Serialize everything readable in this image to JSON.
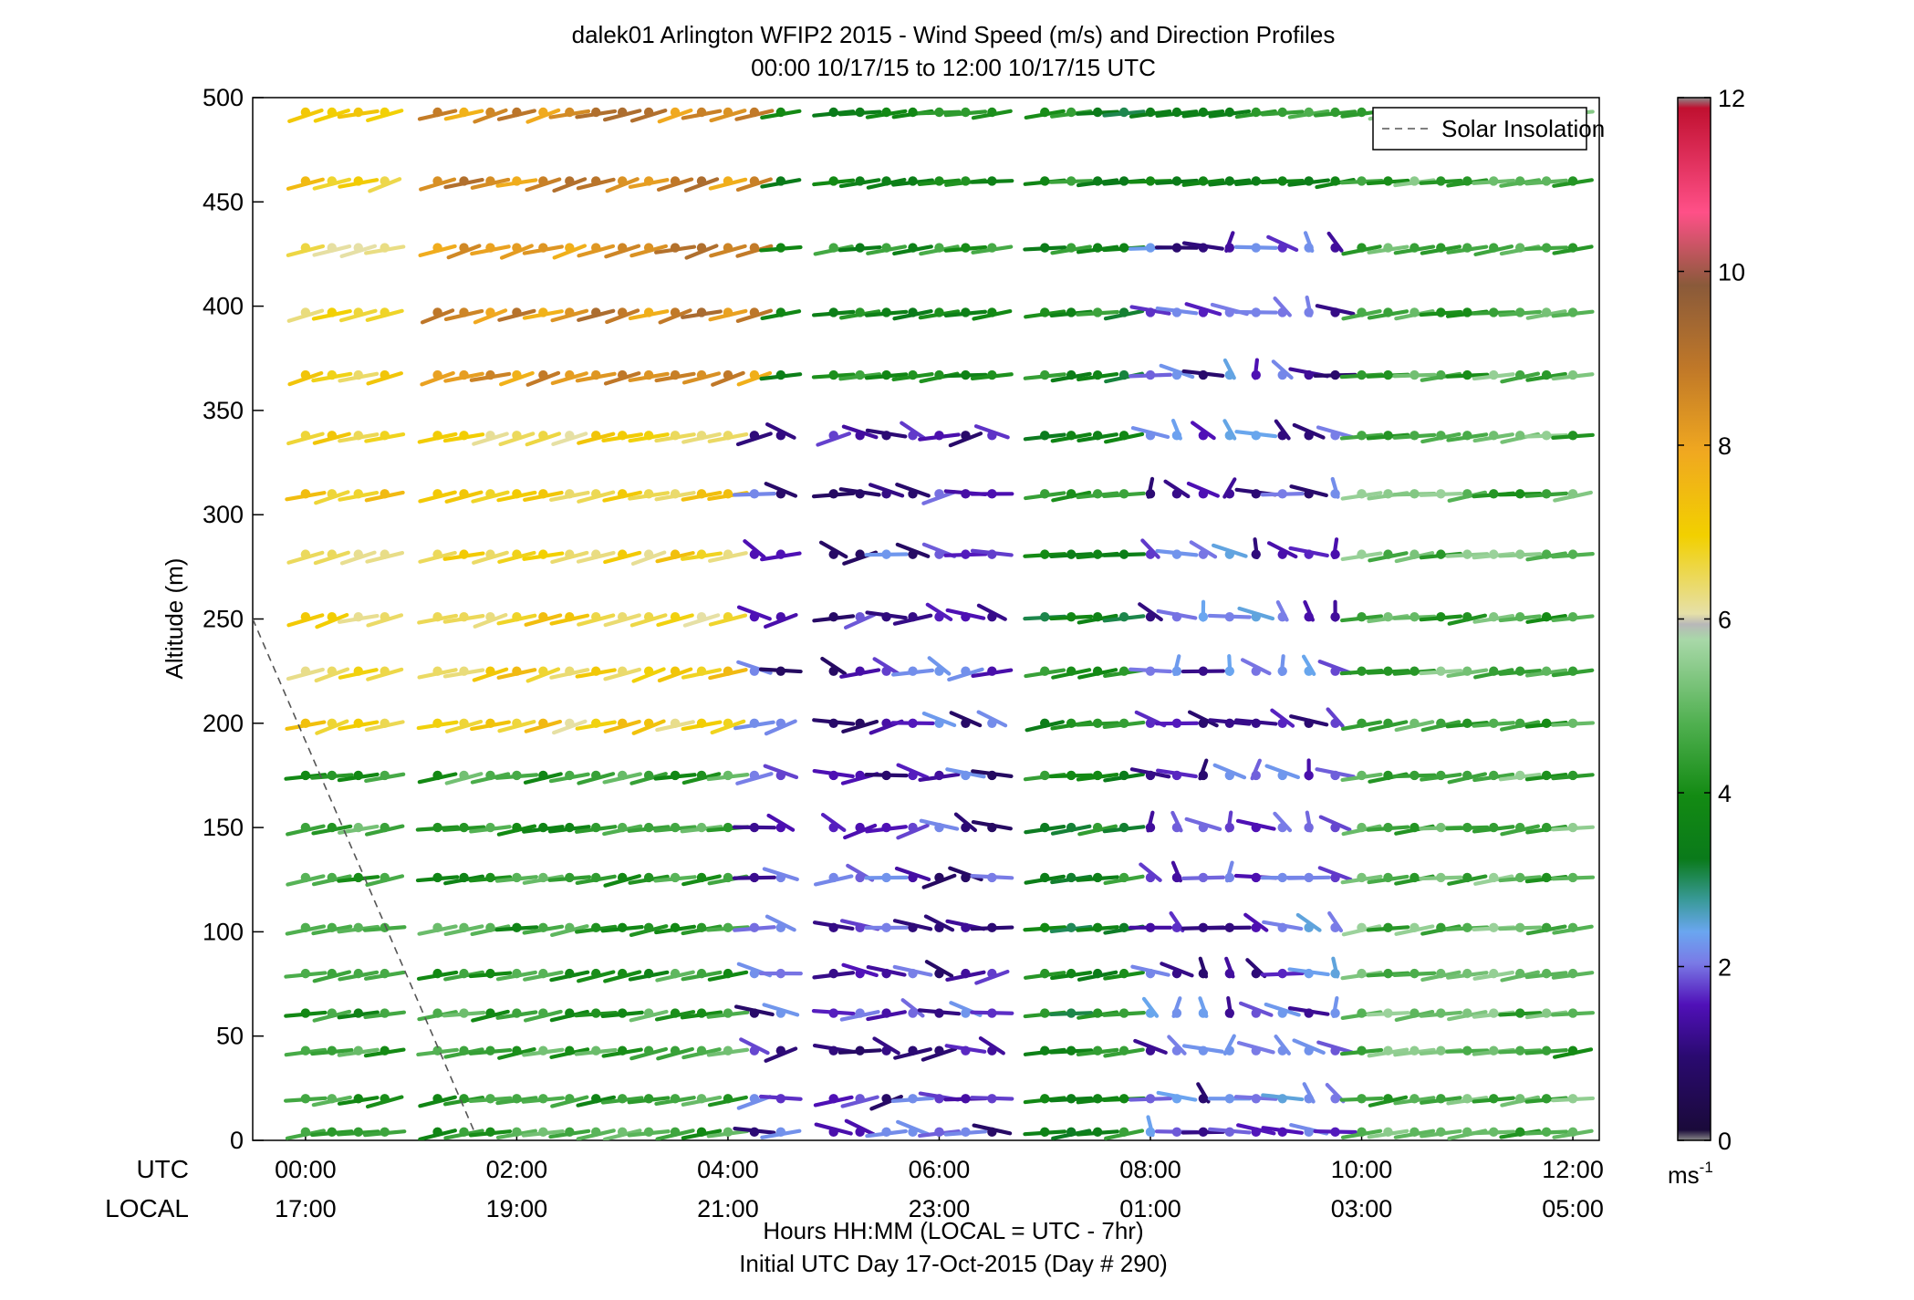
{
  "chart_data": {
    "type": "wind-barb-profile",
    "title": "dalek01 Arlington WFIP2 2015 - Wind Speed (m/s) and Direction Profiles",
    "subtitle": "00:00 10/17/15 to 12:00 10/17/15  UTC",
    "ylabel": "Altitude (m)",
    "xlabel": "Hours HH:MM  (LOCAL = UTC - 7hr)",
    "xlabel2": "Initial UTC Day 17-Oct-2015 (Day # 290)",
    "utc_row_label": "UTC",
    "local_row_label": "LOCAL",
    "xlim_hours": [
      -0.5,
      12.25
    ],
    "ylim": [
      0,
      500
    ],
    "y_ticks": [
      "0",
      "50",
      "100",
      "150",
      "200",
      "250",
      "300",
      "350",
      "400",
      "450",
      "500"
    ],
    "x_ticks": [
      {
        "hour": 0,
        "utc": "00:00",
        "local": "17:00"
      },
      {
        "hour": 2,
        "utc": "02:00",
        "local": "19:00"
      },
      {
        "hour": 4,
        "utc": "04:00",
        "local": "21:00"
      },
      {
        "hour": 6,
        "utc": "06:00",
        "local": "23:00"
      },
      {
        "hour": 8,
        "utc": "08:00",
        "local": "01:00"
      },
      {
        "hour": 10,
        "utc": "10:00",
        "local": "03:00"
      },
      {
        "hour": 12,
        "utc": "12:00",
        "local": "05:00"
      }
    ],
    "altitudes_m": [
      4,
      20,
      43,
      61,
      80,
      102,
      126,
      150,
      175,
      200,
      225,
      251,
      281,
      310,
      338,
      367,
      397,
      428,
      460,
      493
    ],
    "time_step_hours": 0.25,
    "gaps_hours": [
      [
        0.75,
        1.25
      ],
      [
        4.5,
        5.0
      ],
      [
        6.5,
        7.0
      ]
    ],
    "colorbar": {
      "min": 0,
      "max": 12,
      "ticks": [
        "0",
        "2",
        "4",
        "6",
        "8",
        "10",
        "12"
      ],
      "unit": "ms",
      "unit_exp": "-1"
    },
    "legend": {
      "label": "Solar Insolation",
      "placement": "top-right"
    },
    "solar_insolation_line": {
      "points": [
        [
          -0.5,
          250
        ],
        [
          1.6,
          4
        ]
      ]
    },
    "wind_regimes": [
      {
        "name_hint": "early-low",
        "hours": [
          0,
          4.25
        ],
        "alt": [
          0,
          200
        ],
        "speed_ms": 4.4,
        "dir_deg": 250
      },
      {
        "name_hint": "early-upper",
        "hours": [
          0,
          4.25
        ],
        "alt": [
          200,
          500
        ],
        "speed_ms": 6.8,
        "dir_deg": 240
      },
      {
        "name_hint": "jet-top",
        "hours": [
          1.25,
          4.25
        ],
        "alt": [
          360,
          500
        ],
        "speed_ms": 8.5,
        "dir_deg": 240
      },
      {
        "name_hint": "night-calm",
        "hours": [
          4.25,
          6.5
        ],
        "alt": [
          0,
          340
        ],
        "speed_ms": 1.5,
        "dir_deg": 280
      },
      {
        "name_hint": "mid-night",
        "hours": [
          7.0,
          8.0
        ],
        "alt": [
          0,
          500
        ],
        "speed_ms": 3.8,
        "dir_deg": 255
      },
      {
        "name_hint": "late-calm",
        "hours": [
          8.0,
          10.0
        ],
        "alt": [
          0,
          450
        ],
        "speed_ms": 1.7,
        "dir_deg": 320
      },
      {
        "name_hint": "late",
        "hours": [
          10.0,
          12.0
        ],
        "alt": [
          0,
          500
        ],
        "speed_ms": 4.8,
        "dir_deg": 255
      }
    ]
  }
}
